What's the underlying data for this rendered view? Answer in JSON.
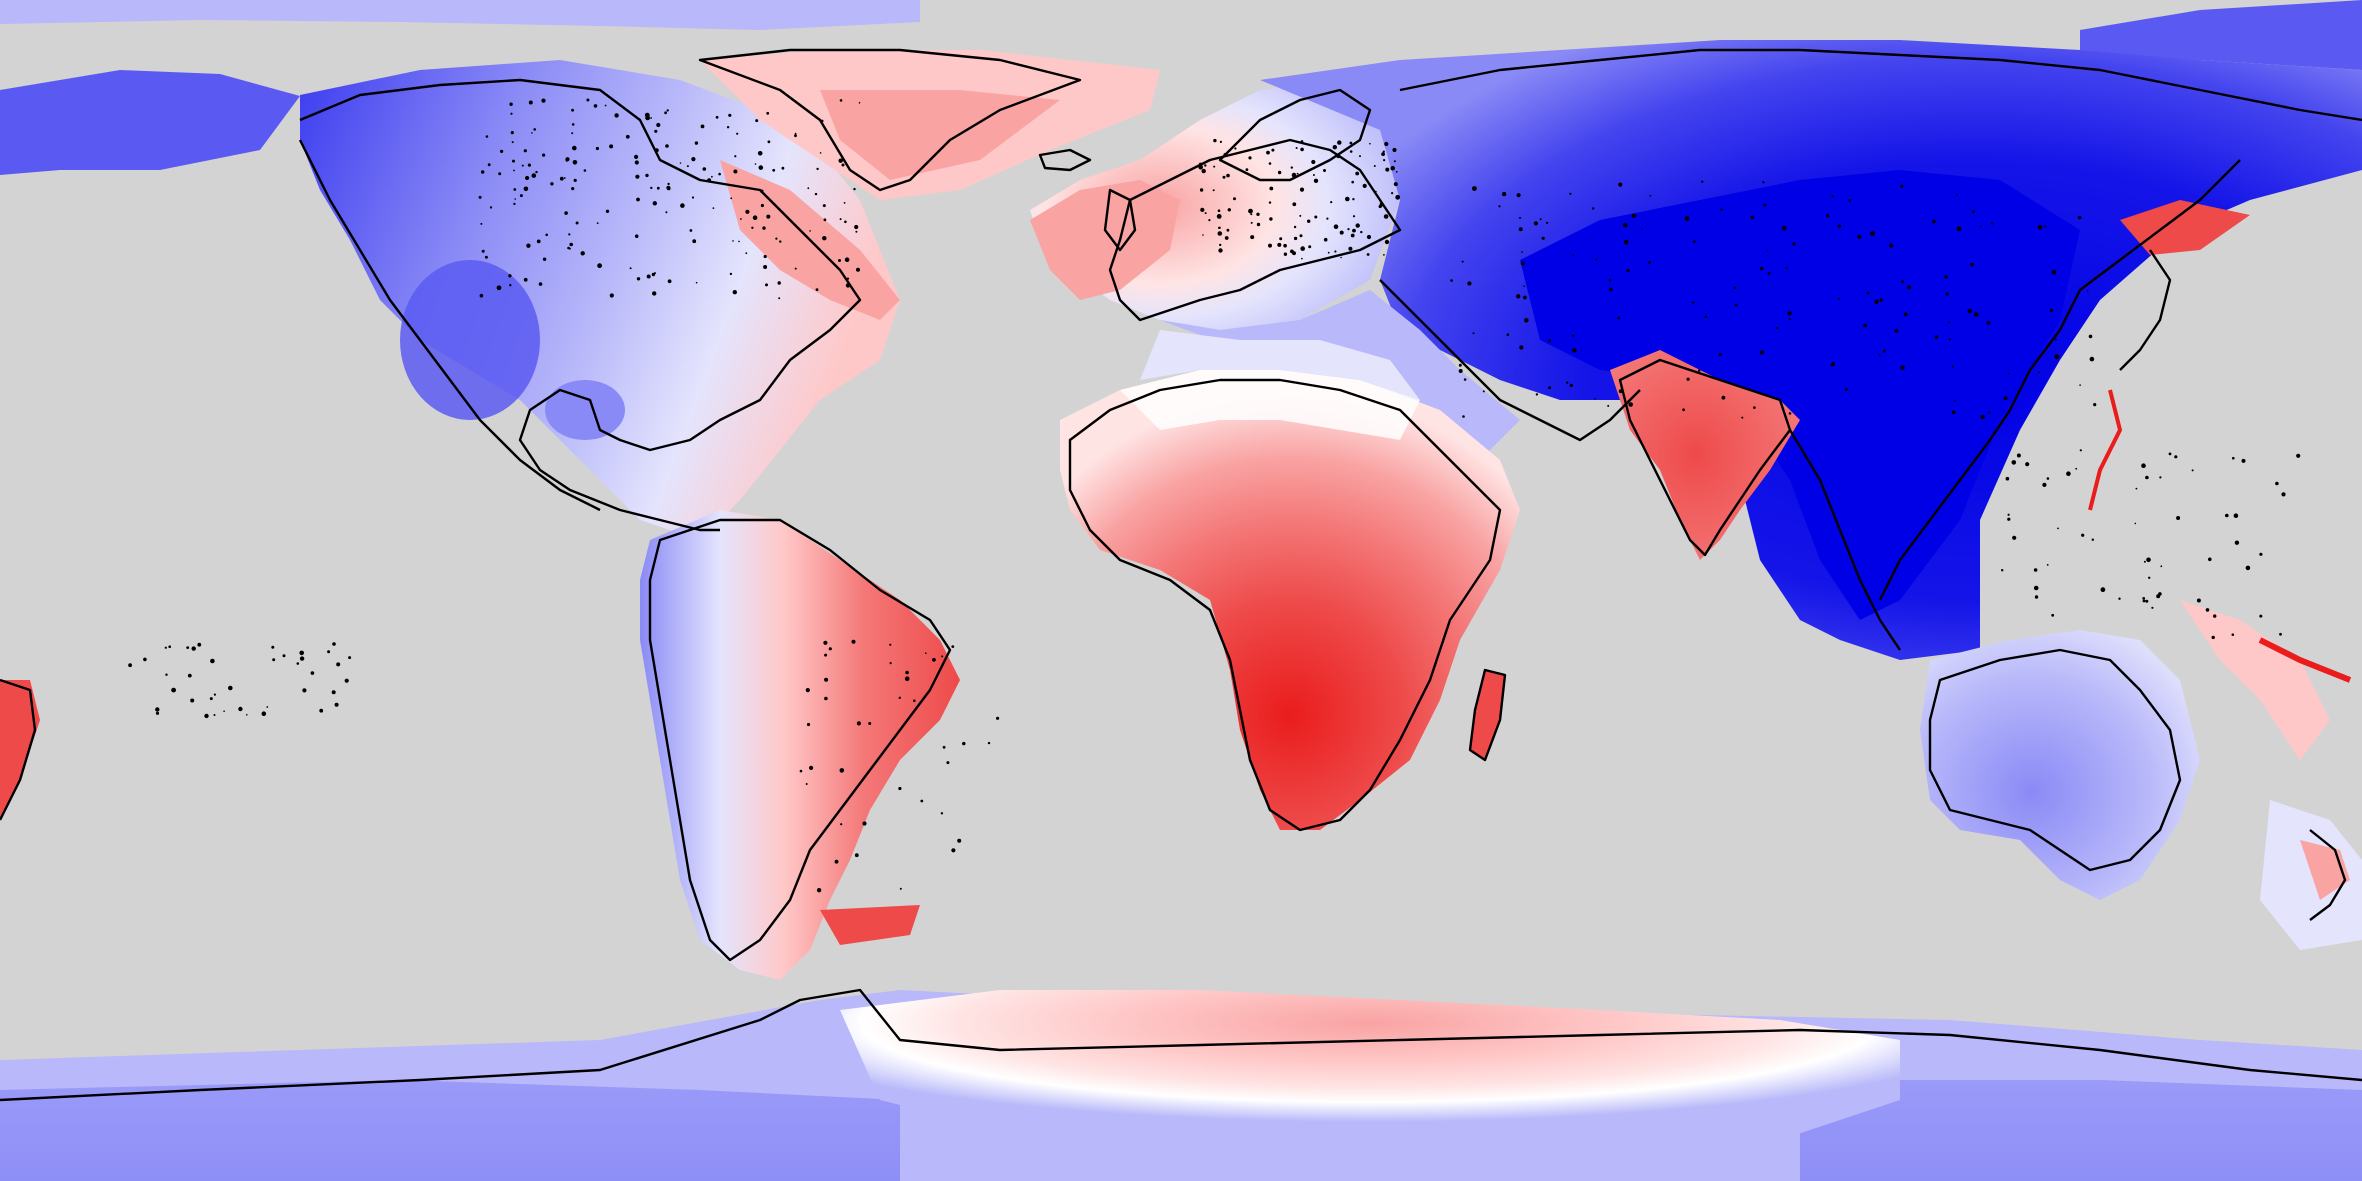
{
  "map": {
    "projection": "equirectangular",
    "background_color": "#d3d3d3",
    "color_scale": {
      "negative_colors": [
        "#0000e6",
        "#2a2aee",
        "#5a5af2",
        "#8a8af6",
        "#b8b8fa",
        "#e4e4fd"
      ],
      "neutral_color": "#ffffff",
      "positive_colors": [
        "#ffe4e4",
        "#ffc8c8",
        "#f9a3a3",
        "#f47878",
        "#ee4a4a",
        "#ea1c1c"
      ]
    },
    "coastline_color": "#000000"
  }
}
